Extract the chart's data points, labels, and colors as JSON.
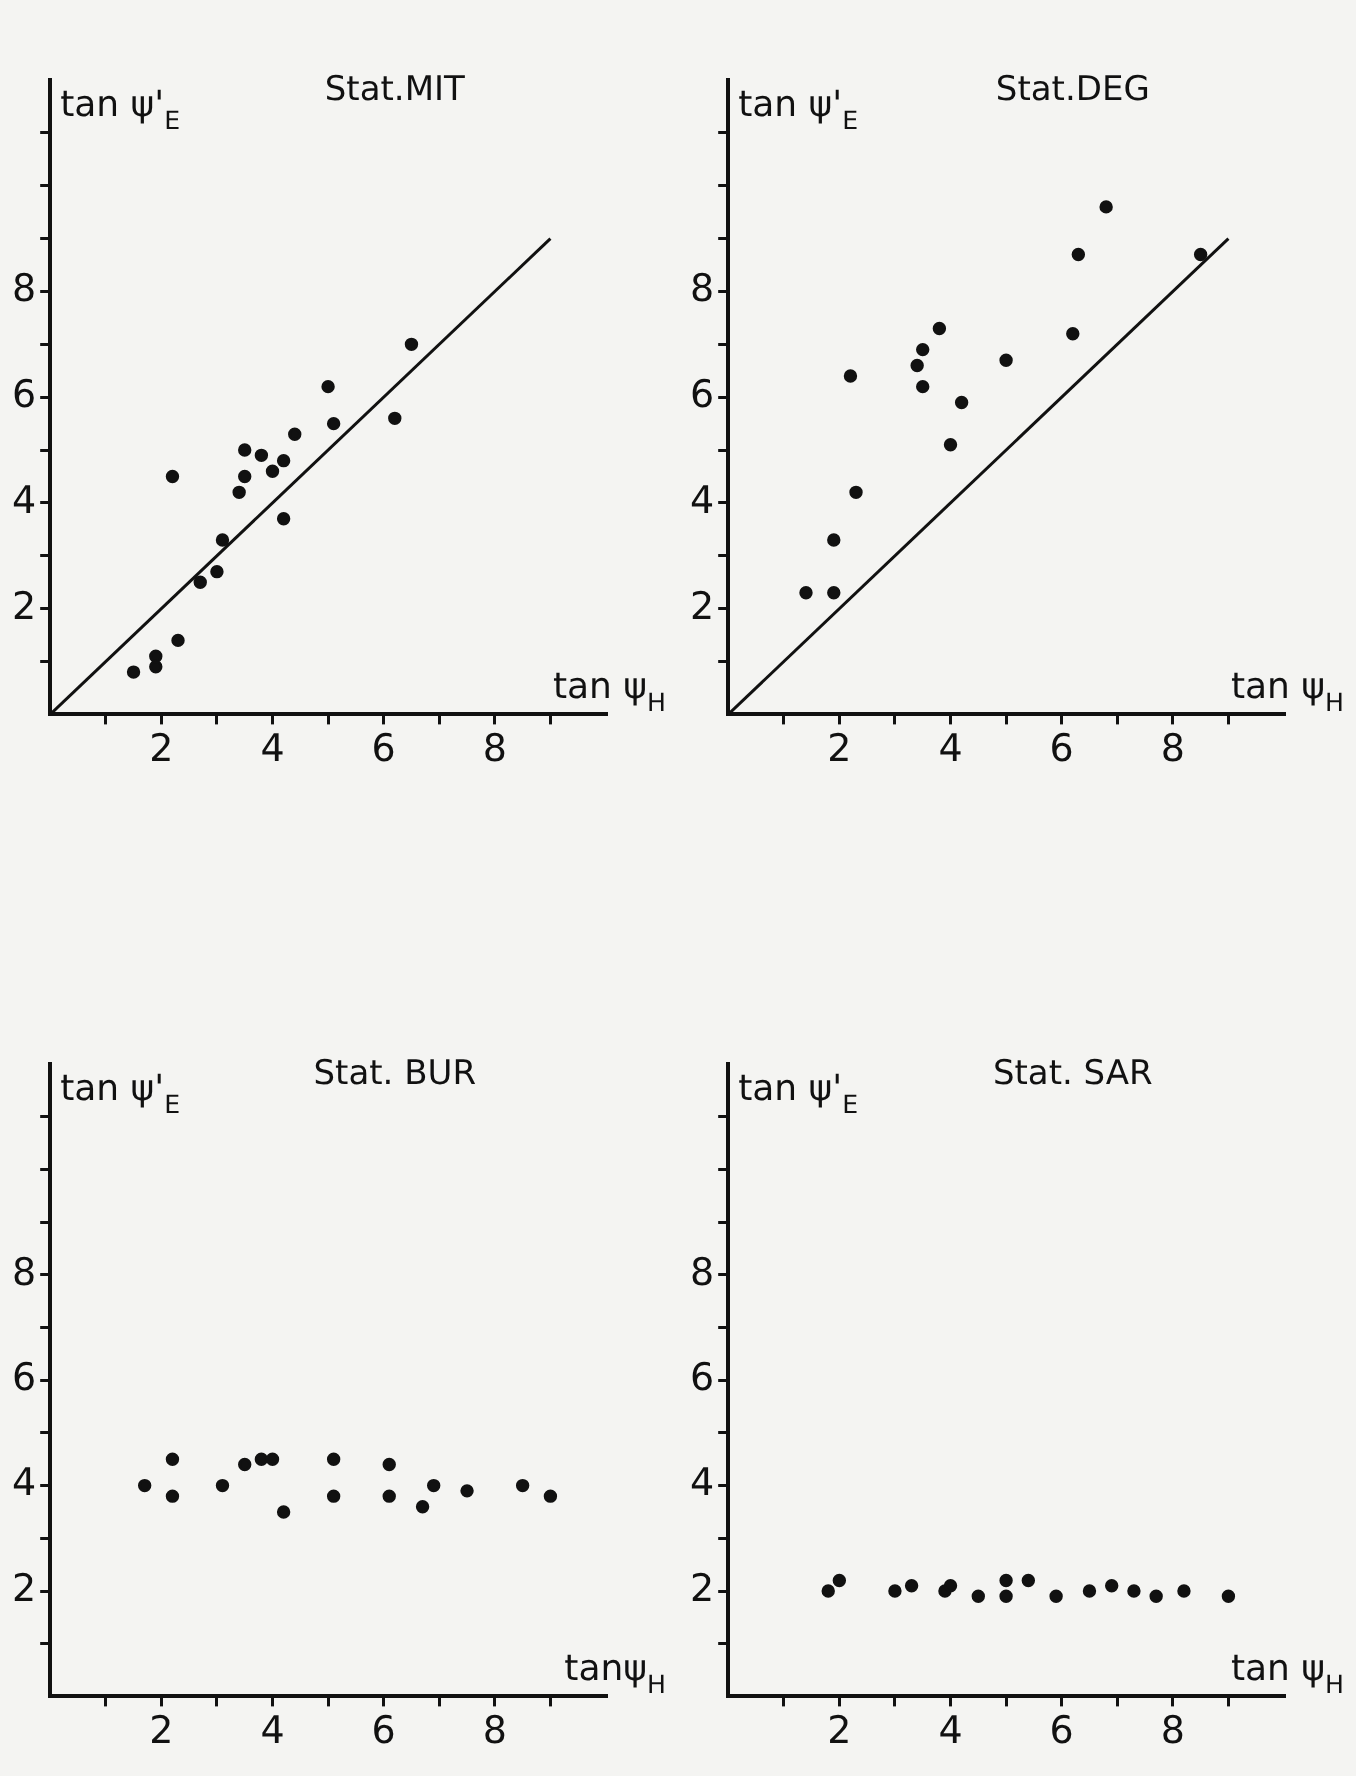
{
  "chart_data": [
    {
      "type": "scatter",
      "title": "Stat.MIT",
      "xlabel": "tan ψ$_{H}$",
      "ylabel": "tan ψ'$_{E}$",
      "xlim": [
        0,
        10
      ],
      "ylim": [
        0,
        12
      ],
      "xticks": [
        {
          "value": 1,
          "label": null
        },
        2,
        {
          "value": 3,
          "label": null
        },
        4,
        {
          "value": 5,
          "label": null
        },
        6,
        {
          "value": 7,
          "label": null
        },
        8,
        {
          "value": 9,
          "label": null
        }
      ],
      "yticks": [
        {
          "value": 1,
          "label": null
        },
        2,
        {
          "value": 3,
          "label": null
        },
        4,
        {
          "value": 5,
          "label": null
        },
        6,
        {
          "value": 7,
          "label": null
        },
        8,
        {
          "value": 9,
          "label": null
        },
        {
          "value": 10,
          "label": null
        },
        {
          "value": 11,
          "label": null
        }
      ],
      "grid": false,
      "legend": false,
      "marker": "circle",
      "series": [
        {
          "color": "#111111",
          "x": [
            1.5,
            1.9,
            1.9,
            2.3,
            2.2,
            2.7,
            3.0,
            3.1,
            3.4,
            3.5,
            3.5,
            3.8,
            4.0,
            4.2,
            4.2,
            4.4,
            5.0,
            5.1,
            6.2,
            6.5
          ],
          "values": [
            0.8,
            1.1,
            0.9,
            1.4,
            4.5,
            2.5,
            2.7,
            3.3,
            4.2,
            4.5,
            5.0,
            4.9,
            4.6,
            4.8,
            3.7,
            5.3,
            6.2,
            5.5,
            5.6,
            7.0
          ]
        },
        {
          "type": "line",
          "color": "#111111",
          "marker": "none",
          "x": [
            0,
            9
          ],
          "values": [
            0,
            9
          ]
        }
      ]
    },
    {
      "type": "scatter",
      "title": "Stat.DEG",
      "xlabel": "tan ψ$_{H}$",
      "ylabel": "tan ψ'$_{E}$",
      "xlim": [
        0,
        10
      ],
      "ylim": [
        0,
        12
      ],
      "xticks": [
        {
          "value": 1,
          "label": null
        },
        2,
        {
          "value": 3,
          "label": null
        },
        4,
        {
          "value": 5,
          "label": null
        },
        6,
        {
          "value": 7,
          "label": null
        },
        8,
        {
          "value": 9,
          "label": null
        }
      ],
      "yticks": [
        {
          "value": 1,
          "label": null
        },
        2,
        {
          "value": 3,
          "label": null
        },
        4,
        {
          "value": 5,
          "label": null
        },
        6,
        {
          "value": 7,
          "label": null
        },
        8,
        {
          "value": 9,
          "label": null
        },
        {
          "value": 10,
          "label": null
        },
        {
          "value": 11,
          "label": null
        }
      ],
      "grid": false,
      "legend": false,
      "marker": "circle",
      "series": [
        {
          "color": "#111111",
          "x": [
            1.4,
            1.9,
            1.9,
            2.3,
            2.2,
            3.4,
            3.5,
            3.5,
            3.8,
            4.2,
            4.0,
            5.0,
            6.2,
            6.3,
            6.8,
            8.5
          ],
          "values": [
            2.3,
            2.3,
            3.3,
            4.2,
            6.4,
            6.6,
            6.9,
            6.2,
            7.3,
            5.9,
            5.1,
            6.7,
            7.2,
            8.7,
            9.6,
            8.7
          ]
        },
        {
          "type": "line",
          "color": "#111111",
          "marker": "none",
          "x": [
            0,
            9
          ],
          "values": [
            0,
            9
          ]
        }
      ]
    },
    {
      "type": "scatter",
      "title": "Stat. BUR",
      "xlabel": "tanψ$_{H}$",
      "ylabel": "tan ψ'$_{E}$",
      "xlim": [
        0,
        10
      ],
      "ylim": [
        0,
        12
      ],
      "xticks": [
        {
          "value": 1,
          "label": null
        },
        2,
        {
          "value": 3,
          "label": null
        },
        4,
        {
          "value": 5,
          "label": null
        },
        6,
        {
          "value": 7,
          "label": null
        },
        8,
        {
          "value": 9,
          "label": null
        }
      ],
      "yticks": [
        {
          "value": 1,
          "label": null
        },
        2,
        {
          "value": 3,
          "label": null
        },
        4,
        {
          "value": 5,
          "label": null
        },
        6,
        {
          "value": 7,
          "label": null
        },
        8,
        {
          "value": 9,
          "label": null
        },
        {
          "value": 10,
          "label": null
        },
        {
          "value": 11,
          "label": null
        }
      ],
      "grid": false,
      "legend": false,
      "marker": "circle",
      "series": [
        {
          "color": "#111111",
          "x": [
            1.7,
            2.2,
            2.2,
            3.1,
            3.5,
            3.8,
            4.0,
            4.2,
            5.1,
            5.1,
            6.1,
            6.1,
            6.7,
            6.9,
            7.5,
            8.5,
            9.0
          ],
          "values": [
            4.0,
            4.5,
            3.8,
            4.0,
            4.4,
            4.5,
            4.5,
            3.5,
            4.5,
            3.8,
            4.4,
            3.8,
            3.6,
            4.0,
            3.9,
            4.0,
            3.8
          ]
        }
      ]
    },
    {
      "type": "scatter",
      "title": "Stat. SAR",
      "xlabel": "tan ψ$_{H}$",
      "ylabel": "tan ψ'$_{E}$",
      "xlim": [
        0,
        10
      ],
      "ylim": [
        0,
        12
      ],
      "xticks": [
        {
          "value": 1,
          "label": null
        },
        2,
        {
          "value": 3,
          "label": null
        },
        4,
        {
          "value": 5,
          "label": null
        },
        6,
        {
          "value": 7,
          "label": null
        },
        8,
        {
          "value": 9,
          "label": null
        }
      ],
      "yticks": [
        {
          "value": 1,
          "label": null
        },
        2,
        {
          "value": 3,
          "label": null
        },
        4,
        {
          "value": 5,
          "label": null
        },
        6,
        {
          "value": 7,
          "label": null
        },
        8,
        {
          "value": 9,
          "label": null
        },
        {
          "value": 10,
          "label": null
        },
        {
          "value": 11,
          "label": null
        }
      ],
      "grid": false,
      "legend": false,
      "marker": "circle",
      "series": [
        {
          "color": "#111111",
          "x": [
            1.8,
            2.0,
            3.0,
            3.3,
            3.9,
            4.0,
            4.5,
            5.0,
            5.0,
            5.4,
            5.9,
            6.5,
            6.9,
            7.3,
            7.7,
            8.2,
            9.0
          ],
          "values": [
            2.0,
            2.2,
            2.0,
            2.1,
            2.0,
            2.1,
            1.9,
            1.9,
            2.2,
            2.2,
            1.9,
            2.0,
            2.1,
            2.0,
            1.9,
            2.0,
            1.9
          ]
        }
      ]
    }
  ]
}
